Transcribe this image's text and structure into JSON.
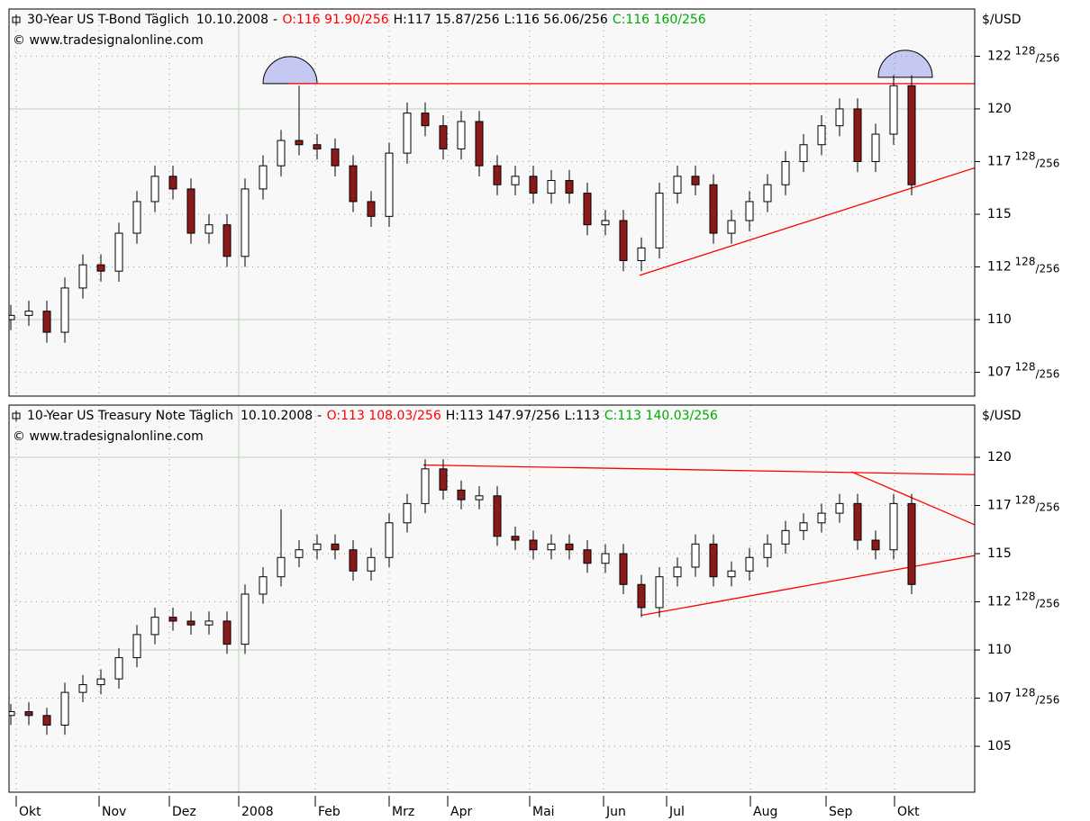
{
  "chart_data": [
    {
      "type": "candlestick",
      "title": "30-Year US T-Bond Täglich",
      "date": "10.10.2008",
      "separator": "-",
      "ohlc_header": [
        {
          "label": "O:",
          "value": "116 91.90/256",
          "color": "#ff0000"
        },
        {
          "label": "H:",
          "value": "117 15.87/256",
          "color": "#000000"
        },
        {
          "label": "L:",
          "value": "116 56.06/256",
          "color": "#000000"
        },
        {
          "label": "C:",
          "value": "116 160/256",
          "color": "#00aa00"
        }
      ],
      "source": "© www.tradesignalonline.com",
      "unit": "$/USD",
      "xlim": [
        -0.1,
        53.5
      ],
      "ylim": [
        106.37,
        124.74
      ],
      "yticks": [
        {
          "value": 107.5,
          "label": "107 128/256"
        },
        110,
        {
          "value": 112.5,
          "label": "112 128/256"
        },
        115,
        {
          "value": 117.5,
          "label": "117 128/256"
        },
        120,
        {
          "value": 122.5,
          "label": "122 128/256"
        }
      ],
      "solid_grid": [
        110,
        120
      ],
      "up_color": "#ffffff",
      "down_color": "#8b1a1a",
      "line_color": "#ff0000",
      "ohlc": [
        [
          110.0,
          110.7,
          109.5,
          110.2
        ],
        [
          110.2,
          110.9,
          109.7,
          110.4
        ],
        [
          110.4,
          110.9,
          108.9,
          109.4
        ],
        [
          109.4,
          112.0,
          108.9,
          111.5
        ],
        [
          111.5,
          113.1,
          111.0,
          112.6
        ],
        [
          112.6,
          113.1,
          111.8,
          112.3
        ],
        [
          112.3,
          114.6,
          111.8,
          114.1
        ],
        [
          114.1,
          116.1,
          113.6,
          115.6
        ],
        [
          115.6,
          117.3,
          115.1,
          116.8
        ],
        [
          116.8,
          117.3,
          115.7,
          116.2
        ],
        [
          116.2,
          116.7,
          113.6,
          114.1
        ],
        [
          114.1,
          115.0,
          113.6,
          114.5
        ],
        [
          114.5,
          115.0,
          112.5,
          113.0
        ],
        [
          113.0,
          116.7,
          112.5,
          116.2
        ],
        [
          116.2,
          117.8,
          115.7,
          117.3
        ],
        [
          117.3,
          119.0,
          116.8,
          118.5
        ],
        [
          118.5,
          121.1,
          117.8,
          118.3
        ],
        [
          118.3,
          118.8,
          117.6,
          118.1
        ],
        [
          118.1,
          118.6,
          116.8,
          117.3
        ],
        [
          117.3,
          117.8,
          115.1,
          115.6
        ],
        [
          115.6,
          116.1,
          114.4,
          114.9
        ],
        [
          114.9,
          118.4,
          114.4,
          117.9
        ],
        [
          117.9,
          120.3,
          117.4,
          119.8
        ],
        [
          119.8,
          120.3,
          118.7,
          119.2
        ],
        [
          119.2,
          119.7,
          117.6,
          118.1
        ],
        [
          118.1,
          119.9,
          117.6,
          119.4
        ],
        [
          119.4,
          119.9,
          116.8,
          117.3
        ],
        [
          117.3,
          117.8,
          115.9,
          116.4
        ],
        [
          116.4,
          117.3,
          115.9,
          116.8
        ],
        [
          116.8,
          117.3,
          115.5,
          116.0
        ],
        [
          116.0,
          117.1,
          115.5,
          116.6
        ],
        [
          116.6,
          117.1,
          115.5,
          116.0
        ],
        [
          116.0,
          116.5,
          114.0,
          114.5
        ],
        [
          114.5,
          115.2,
          114.0,
          114.7
        ],
        [
          114.7,
          115.2,
          112.3,
          112.8
        ],
        [
          112.8,
          113.9,
          112.3,
          113.4
        ],
        [
          113.4,
          116.5,
          112.9,
          116.0
        ],
        [
          116.0,
          117.3,
          115.5,
          116.8
        ],
        [
          116.8,
          117.3,
          115.9,
          116.4
        ],
        [
          116.4,
          116.9,
          113.6,
          114.1
        ],
        [
          114.1,
          115.2,
          113.6,
          114.7
        ],
        [
          114.7,
          116.1,
          114.2,
          115.6
        ],
        [
          115.6,
          116.9,
          115.1,
          116.4
        ],
        [
          116.4,
          118.0,
          115.9,
          117.5
        ],
        [
          117.5,
          118.8,
          117.0,
          118.3
        ],
        [
          118.3,
          119.7,
          117.8,
          119.2
        ],
        [
          119.2,
          120.5,
          118.7,
          120.0
        ],
        [
          120.0,
          120.5,
          117.0,
          117.5
        ],
        [
          117.5,
          119.3,
          117.0,
          118.8
        ],
        [
          118.8,
          121.6,
          118.3,
          121.1
        ],
        [
          121.1,
          121.6,
          115.9,
          116.4
        ]
      ],
      "trend_lines": [
        [
          [
            15.4,
            121.2
          ],
          [
            53.5,
            121.2
          ]
        ],
        [
          [
            34.9,
            112.1
          ],
          [
            53.5,
            117.2
          ]
        ]
      ],
      "highlights": [
        {
          "x": 15.5,
          "y": 121.2
        },
        {
          "x": 49.65,
          "y": 121.5
        }
      ]
    },
    {
      "type": "candlestick",
      "title": "10-Year US Treasury Note Täglich",
      "date": "10.10.2008",
      "separator": "-",
      "ohlc_header": [
        {
          "label": "O:",
          "value": "113 108.03/256",
          "color": "#ff0000"
        },
        {
          "label": "H:",
          "value": "113 147.97/256",
          "color": "#000000"
        },
        {
          "label": "L:",
          "value": "113",
          "color": "#000000"
        },
        {
          "label": "C:",
          "value": "113 140.03/256",
          "color": "#00aa00"
        }
      ],
      "source": "© www.tradesignalonline.com",
      "unit": "$/USD",
      "xlim": [
        -0.1,
        53.5
      ],
      "ylim": [
        102.62,
        122.71
      ],
      "yticks": [
        105,
        {
          "value": 107.5,
          "label": "107 128/256"
        },
        110,
        {
          "value": 112.5,
          "label": "112 128/256"
        },
        115,
        {
          "value": 117.5,
          "label": "117 128/256"
        },
        120
      ],
      "solid_grid": [
        110,
        120
      ],
      "xticks": [
        {
          "value": 0.3,
          "label": "Okt"
        },
        {
          "value": 4.9,
          "label": "Nov"
        },
        {
          "value": 8.8,
          "label": "Dez"
        },
        {
          "value": 12.65,
          "label": "2008"
        },
        {
          "value": 16.9,
          "label": "Feb"
        },
        {
          "value": 21,
          "label": "Mrz"
        },
        {
          "value": 24.25,
          "label": "Apr"
        },
        {
          "value": 28.8,
          "label": "Mai"
        },
        {
          "value": 32.9,
          "label": "Jun"
        },
        {
          "value": 36.4,
          "label": "Jul"
        },
        {
          "value": 41.05,
          "label": "Aug"
        },
        {
          "value": 45.25,
          "label": "Sep"
        },
        {
          "value": 49.05,
          "label": "Okt"
        }
      ],
      "up_color": "#ffffff",
      "down_color": "#8b1a1a",
      "line_color": "#ff0000",
      "ohlc": [
        [
          106.6,
          107.2,
          106.1,
          106.8
        ],
        [
          106.8,
          107.3,
          106.1,
          106.6
        ],
        [
          106.6,
          107.0,
          105.6,
          106.1
        ],
        [
          106.1,
          108.3,
          105.6,
          107.8
        ],
        [
          107.8,
          108.7,
          107.3,
          108.2
        ],
        [
          108.2,
          109.0,
          107.7,
          108.5
        ],
        [
          108.5,
          110.1,
          108.0,
          109.6
        ],
        [
          109.6,
          111.3,
          109.1,
          110.8
        ],
        [
          110.8,
          112.2,
          110.3,
          111.7
        ],
        [
          111.7,
          112.2,
          111.0,
          111.5
        ],
        [
          111.5,
          112.0,
          110.8,
          111.3
        ],
        [
          111.3,
          112.0,
          110.8,
          111.5
        ],
        [
          111.5,
          112.0,
          109.8,
          110.3
        ],
        [
          110.3,
          113.4,
          109.8,
          112.9
        ],
        [
          112.9,
          114.3,
          112.4,
          113.8
        ],
        [
          113.8,
          117.3,
          113.3,
          114.8
        ],
        [
          114.8,
          115.7,
          114.3,
          115.2
        ],
        [
          115.2,
          116.0,
          114.7,
          115.5
        ],
        [
          115.5,
          116.0,
          114.7,
          115.2
        ],
        [
          115.2,
          115.7,
          113.6,
          114.1
        ],
        [
          114.1,
          115.3,
          113.6,
          114.8
        ],
        [
          114.8,
          117.1,
          114.3,
          116.6
        ],
        [
          116.6,
          118.1,
          116.1,
          117.6
        ],
        [
          117.6,
          119.9,
          117.1,
          119.4
        ],
        [
          119.4,
          119.9,
          117.8,
          118.3
        ],
        [
          118.3,
          118.8,
          117.3,
          117.8
        ],
        [
          117.8,
          118.5,
          117.3,
          118.0
        ],
        [
          118.0,
          118.5,
          115.4,
          115.9
        ],
        [
          115.9,
          116.4,
          115.2,
          115.7
        ],
        [
          115.7,
          116.2,
          114.7,
          115.2
        ],
        [
          115.2,
          116.0,
          114.7,
          115.5
        ],
        [
          115.5,
          116.0,
          114.7,
          115.2
        ],
        [
          115.2,
          115.7,
          114.0,
          114.5
        ],
        [
          114.5,
          115.5,
          114.0,
          115.0
        ],
        [
          115.0,
          115.5,
          112.9,
          113.4
        ],
        [
          113.4,
          113.9,
          111.7,
          112.2
        ],
        [
          112.2,
          114.3,
          111.7,
          113.8
        ],
        [
          113.8,
          114.8,
          113.3,
          114.3
        ],
        [
          114.3,
          116.0,
          113.8,
          115.5
        ],
        [
          115.5,
          116.0,
          113.3,
          113.8
        ],
        [
          113.8,
          114.6,
          113.3,
          114.1
        ],
        [
          114.1,
          115.3,
          113.6,
          114.8
        ],
        [
          114.8,
          116.0,
          114.3,
          115.5
        ],
        [
          115.5,
          116.7,
          115.0,
          116.2
        ],
        [
          116.2,
          117.1,
          115.7,
          116.6
        ],
        [
          116.6,
          117.6,
          116.1,
          117.1
        ],
        [
          117.1,
          118.1,
          116.6,
          117.6
        ],
        [
          117.6,
          118.1,
          115.2,
          115.7
        ],
        [
          115.7,
          116.2,
          114.7,
          115.2
        ],
        [
          115.2,
          118.1,
          114.7,
          117.6
        ],
        [
          117.6,
          118.1,
          112.9,
          113.4
        ]
      ],
      "trend_lines": [
        [
          [
            22.9,
            119.6
          ],
          [
            53.5,
            119.1
          ]
        ],
        [
          [
            46.65,
            119.25
          ],
          [
            53.5,
            116.5
          ]
        ],
        [
          [
            35.0,
            111.8
          ],
          [
            53.5,
            114.9
          ]
        ]
      ]
    }
  ]
}
